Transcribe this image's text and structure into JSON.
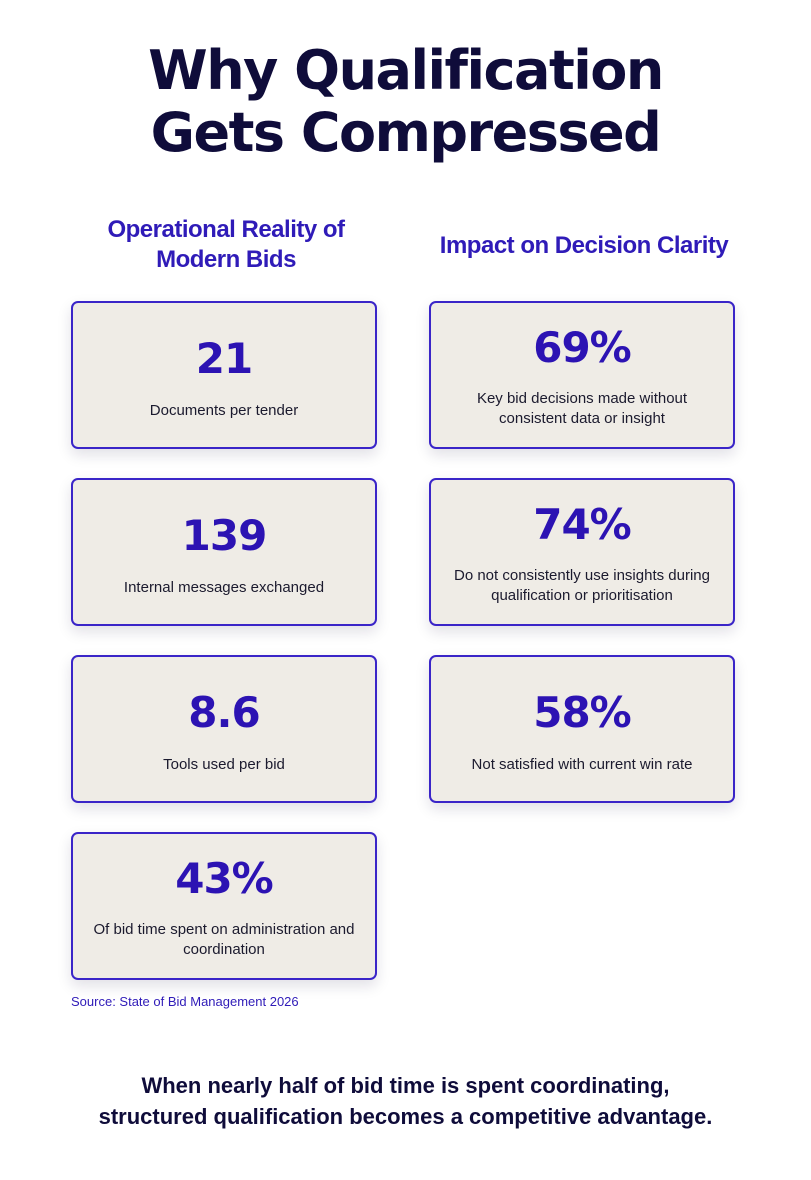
{
  "title": {
    "line1": "Why Qualification",
    "line2": "Gets Compressed"
  },
  "left_column": {
    "heading": "Operational Reality of Modern Bids",
    "cards": [
      {
        "value": "21",
        "description": "Documents per tender"
      },
      {
        "value": "139",
        "description": "Internal messages exchanged"
      },
      {
        "value": "8.6",
        "description": "Tools used per bid"
      },
      {
        "value": "43%",
        "description": "Of bid time spent on administration and coordination"
      }
    ]
  },
  "right_column": {
    "heading": "Impact on Decision Clarity",
    "cards": [
      {
        "value": "69%",
        "description": "Key bid decisions made without consistent data or insight"
      },
      {
        "value": "74%",
        "description": "Do not consistently use insights during qualification or prioritisation"
      },
      {
        "value": "58%",
        "description": "Not satisfied with current win rate"
      }
    ]
  },
  "source": "Source: State of Bid Management 2026",
  "footer": {
    "line1": "When nearly half of bid time is spent coordinating,",
    "line2": "structured qualification becomes a competitive advantage."
  },
  "colors": {
    "accent": "#2f1bb8",
    "card_background": "#efece6",
    "card_border": "#3a25c8",
    "title": "#0f0c3a"
  }
}
